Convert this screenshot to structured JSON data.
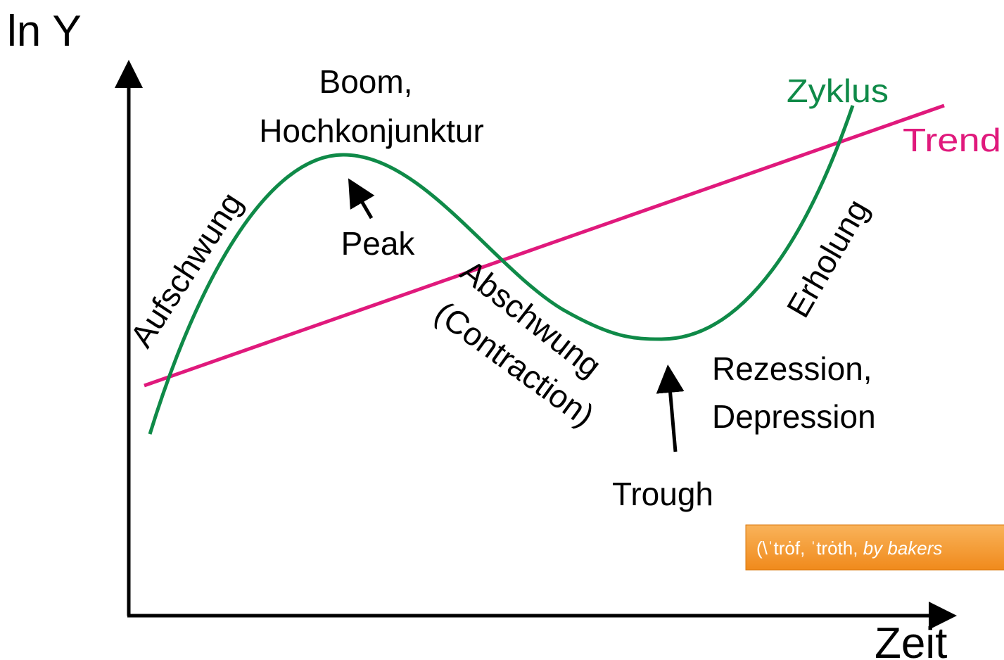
{
  "axes": {
    "y_label": "ln Y",
    "x_label": "Zeit"
  },
  "curves": {
    "cycle": "Zyklus",
    "trend": "Trend"
  },
  "labels": {
    "boom": [
      "Boom,",
      "Hochkonjunktur"
    ],
    "peak": "Peak",
    "upswing": "Aufschwung",
    "downswing": [
      "Abschwung",
      "(Contraction)"
    ],
    "trough": "Trough",
    "recession": [
      "Rezession,",
      "Depression"
    ],
    "recovery": "Erholung"
  },
  "tooltip": {
    "text": "(\\ˈtrȯf, ˈtrȯth,",
    "italic": "by bakers"
  }
}
